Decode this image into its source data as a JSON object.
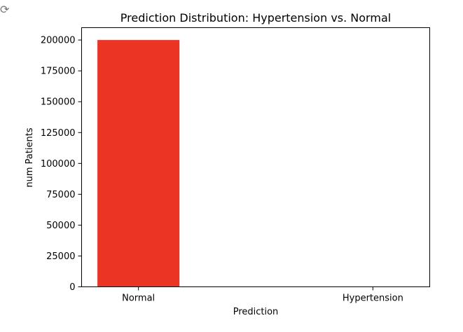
{
  "colors": {
    "bar": "#ec3424",
    "axis": "#000000",
    "background": "#ffffff"
  },
  "corner_icon": "refresh-icon",
  "chart_data": {
    "type": "bar",
    "title": "Prediction Distribution: Hypertension vs. Normal",
    "xlabel": "Prediction",
    "ylabel": "num Patients",
    "categories": [
      "Normal",
      "Hypertension"
    ],
    "values": [
      200000,
      0
    ],
    "ylim": [
      0,
      210000
    ],
    "yticks": [
      0,
      25000,
      50000,
      75000,
      100000,
      125000,
      150000,
      175000,
      200000
    ],
    "grid": false,
    "legend": "none"
  }
}
